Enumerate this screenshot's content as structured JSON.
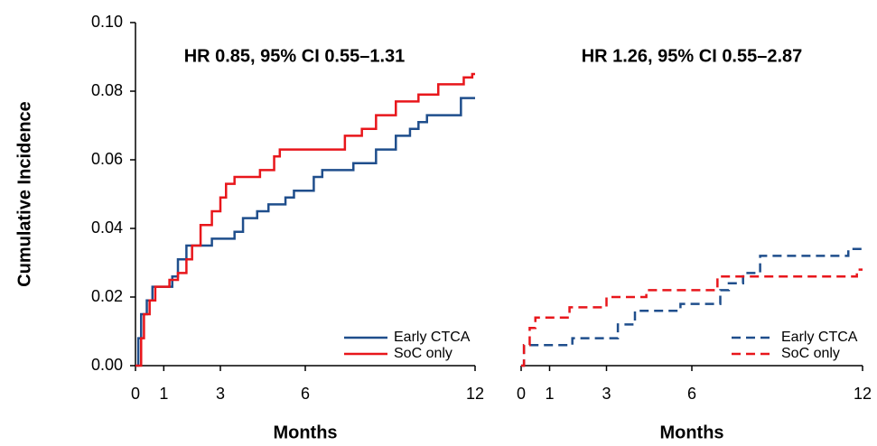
{
  "chart_data": [
    {
      "type": "step",
      "ylabel": "Cumulative Incidence",
      "xlabel": "Months",
      "annotation": "HR 0.85, 95% CI 0.55–1.31",
      "xlim": [
        0,
        12
      ],
      "xticks": [
        0,
        1,
        3,
        6,
        12
      ],
      "ylim": [
        0,
        0.1
      ],
      "yticks": [
        {
          "value": 0,
          "label": "0.00"
        },
        {
          "value": 0.02,
          "label": "0.02"
        },
        {
          "value": 0.04,
          "label": "0.04"
        },
        {
          "value": 0.06,
          "label": "0.06"
        },
        {
          "value": 0.08,
          "label": "0.08"
        },
        {
          "value": 0.1,
          "label": "0.10"
        }
      ],
      "dashed": false,
      "legend": "lower right",
      "series": [
        {
          "name": "Early CTCA",
          "color": "#1f4e8c",
          "x": [
            0,
            0.1,
            0.2,
            0.4,
            0.6,
            1.3,
            1.5,
            1.8,
            2.7,
            3.5,
            3.8,
            4.3,
            4.7,
            5.3,
            5.6,
            6.3,
            6.6,
            7.7,
            8.5,
            9.2,
            9.7,
            10.0,
            10.3,
            11.5,
            12
          ],
          "values": [
            0,
            0.008,
            0.015,
            0.019,
            0.023,
            0.026,
            0.031,
            0.035,
            0.037,
            0.039,
            0.043,
            0.045,
            0.047,
            0.049,
            0.051,
            0.055,
            0.057,
            0.059,
            0.063,
            0.067,
            0.069,
            0.071,
            0.073,
            0.078,
            0.078
          ]
        },
        {
          "name": "SoC only",
          "color": "#e8161b",
          "x": [
            0,
            0.2,
            0.3,
            0.5,
            0.7,
            1.2,
            1.5,
            1.8,
            2.0,
            2.3,
            2.7,
            3.0,
            3.2,
            3.5,
            4.4,
            4.9,
            5.1,
            7.4,
            8.0,
            8.5,
            9.2,
            10.0,
            10.7,
            11.6,
            11.9,
            12
          ],
          "values": [
            0,
            0.008,
            0.015,
            0.019,
            0.023,
            0.025,
            0.027,
            0.031,
            0.035,
            0.041,
            0.045,
            0.049,
            0.053,
            0.055,
            0.057,
            0.061,
            0.063,
            0.067,
            0.069,
            0.073,
            0.077,
            0.079,
            0.082,
            0.084,
            0.085,
            0.085
          ]
        }
      ]
    },
    {
      "type": "step",
      "xlabel": "Months",
      "annotation": "HR 1.26, 95% CI 0.55–2.87",
      "xlim": [
        0,
        12
      ],
      "xticks": [
        0,
        1,
        3,
        6,
        12
      ],
      "ylim": [
        0,
        0.1
      ],
      "dashed": true,
      "legend": "lower right",
      "series": [
        {
          "name": "Early CTCA",
          "color": "#1f4e8c",
          "x": [
            0,
            0.1,
            1.8,
            3.4,
            4.0,
            5.6,
            7.0,
            7.3,
            7.8,
            8.4,
            11.5,
            12
          ],
          "values": [
            0,
            0.006,
            0.008,
            0.012,
            0.016,
            0.018,
            0.022,
            0.024,
            0.027,
            0.032,
            0.034,
            0.034
          ]
        },
        {
          "name": "SoC only",
          "color": "#e8161b",
          "x": [
            0,
            0.1,
            0.3,
            0.5,
            1.7,
            3.0,
            4.4,
            6.9,
            11.8,
            12
          ],
          "values": [
            0,
            0.006,
            0.011,
            0.014,
            0.017,
            0.02,
            0.022,
            0.026,
            0.028,
            0.028
          ]
        }
      ]
    }
  ]
}
